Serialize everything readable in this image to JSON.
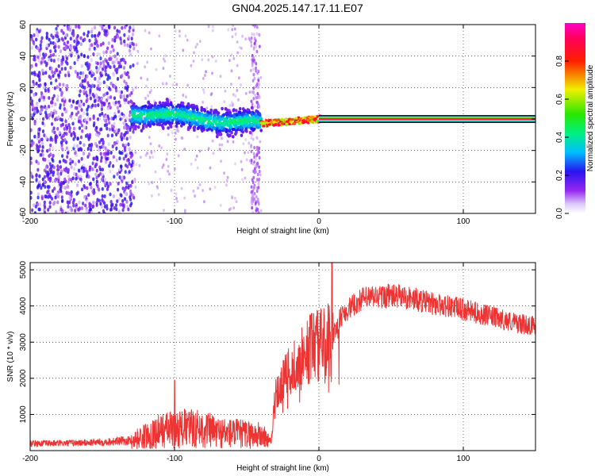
{
  "title": "GN04.2025.147.17.11.E07",
  "chart_data": [
    {
      "type": "heatmap",
      "xlabel": "Height of straight line (km)",
      "ylabel": "Frequency (Hz)",
      "xlim": [
        -200,
        150
      ],
      "ylim": [
        -60,
        60
      ],
      "x_ticks": [
        -200,
        -100,
        0,
        100
      ],
      "y_ticks": [
        -60,
        -40,
        -20,
        0,
        20,
        40,
        60
      ],
      "colorbar": {
        "label": "Normalized spectral amplitude",
        "range": [
          0,
          1
        ],
        "ticks": [
          0,
          0.2,
          0.4,
          0.6,
          0.8
        ],
        "colormap": "rainbow (white-purple-blue-cyan-green-yellow-red-pink)"
      },
      "regions": [
        {
          "x_range": [
            -200,
            -130
          ],
          "y_range": [
            -60,
            60
          ],
          "amplitude_range": [
            0.05,
            0.25
          ],
          "description": "broadband noise"
        },
        {
          "x_range": [
            -130,
            -40
          ],
          "center_hz_from": 4,
          "center_hz_to": -3,
          "width_hz": 12,
          "amplitude_range": [
            0.15,
            0.45
          ]
        },
        {
          "x_range": [
            -40,
            0
          ],
          "center_hz_from": -3,
          "center_hz_to": 0,
          "width_hz": 4,
          "amplitude_range": [
            0.6,
            1.0
          ]
        },
        {
          "x_range": [
            0,
            150
          ],
          "center_hz": 0,
          "width_hz": 3,
          "amplitude": 1.0
        }
      ],
      "grid": true
    },
    {
      "type": "line",
      "xlabel": "Height of straight line (km)",
      "ylabel": "SNR (10 * v/v)",
      "xlim": [
        -200,
        150
      ],
      "ylim": [
        0,
        5200
      ],
      "x_ticks": [
        -200,
        -100,
        0,
        100
      ],
      "y_ticks": [
        1000,
        2000,
        3000,
        4000,
        5000
      ],
      "color": "#ee3333",
      "grid": true,
      "series": [
        {
          "x": [
            -200,
            -180,
            -160,
            -140,
            -130,
            -120,
            -110,
            -100,
            -90,
            -80,
            -70,
            -60,
            -50,
            -40,
            -33,
            -30,
            -25,
            -20,
            -15,
            -10,
            -5,
            0,
            5,
            10,
            15,
            20,
            25,
            30,
            40,
            50,
            60,
            70,
            80,
            90,
            100,
            110,
            120,
            130,
            140,
            150
          ],
          "values": [
            200,
            200,
            220,
            260,
            280,
            400,
            550,
            600,
            620,
            600,
            500,
            480,
            450,
            420,
            250,
            1600,
            1900,
            2150,
            2400,
            2600,
            2900,
            2900,
            3000,
            3200,
            3700,
            3900,
            4050,
            4200,
            4250,
            4280,
            4250,
            4150,
            4050,
            4000,
            3900,
            3800,
            3700,
            3600,
            3500,
            3450
          ],
          "spikes": [
            {
              "x": -100,
              "y": 1950
            },
            {
              "x": 9,
              "y": 5200
            },
            {
              "x": 48,
              "y": 4600
            }
          ]
        }
      ]
    }
  ],
  "colors": {
    "line": "#ee3333",
    "text": "#000000",
    "grid": "#000000"
  }
}
